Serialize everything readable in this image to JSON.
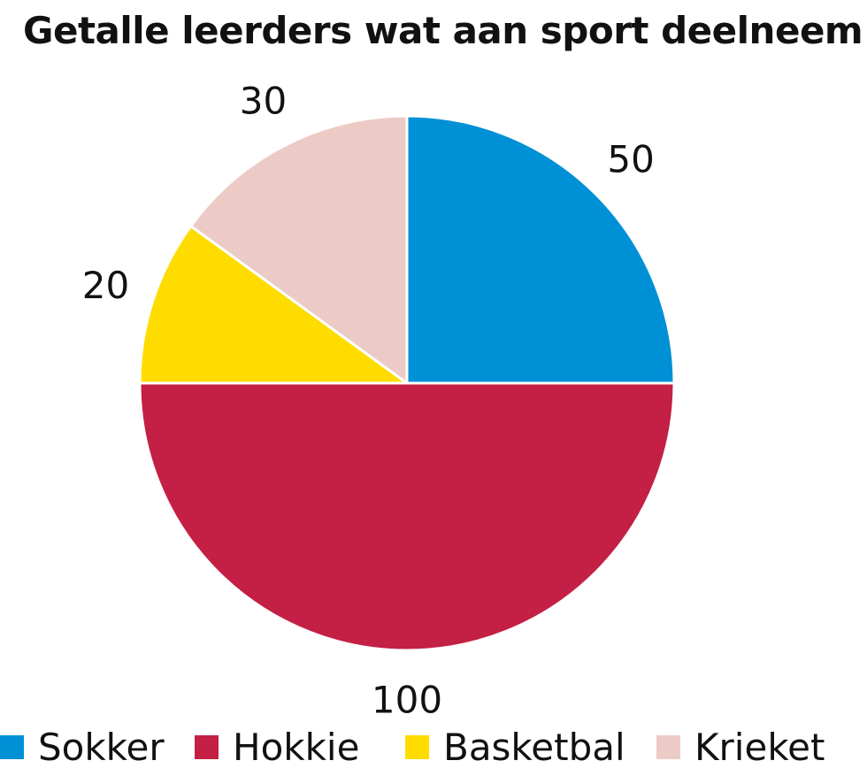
{
  "chart_data": {
    "type": "pie",
    "title": "Getalle leerders wat aan sport deelneem",
    "categories": [
      "Sokker",
      "Hokkie",
      "Basketbal",
      "Krieket"
    ],
    "values": [
      50,
      100,
      20,
      30
    ],
    "colors": [
      "#0090d6",
      "#c41f45",
      "#ffdc00",
      "#eccbc6"
    ],
    "data_labels": [
      "50",
      "100",
      "20",
      "30"
    ],
    "start_angle": "12 o'clock",
    "direction": "clockwise",
    "legend": {
      "position": "bottom",
      "items": [
        {
          "label": "Sokker",
          "color": "#0090d6"
        },
        {
          "label": "Hokkie",
          "color": "#c41f45"
        },
        {
          "label": "Basketbal",
          "color": "#ffdc00"
        },
        {
          "label": "Krieket",
          "color": "#eccbc6"
        }
      ]
    }
  }
}
